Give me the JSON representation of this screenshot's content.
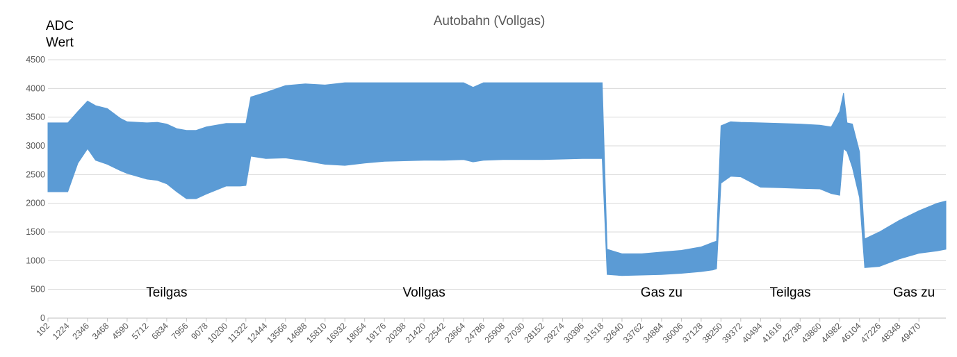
{
  "chart_data": {
    "type": "area",
    "title": "Autobahn (Vollgas)",
    "ylabel_lines": [
      "ADC",
      "Wert"
    ],
    "xlabel": "",
    "ylim": [
      0,
      4500
    ],
    "yticks": [
      "0",
      "500",
      "1000",
      "1500",
      "2000",
      "2500",
      "3000",
      "3500",
      "4000",
      "4500"
    ],
    "grid": true,
    "legend": "none",
    "xlim": [
      102,
      51000
    ],
    "xticks": [
      "102",
      "1224",
      "2346",
      "3468",
      "4590",
      "5712",
      "6834",
      "7956",
      "9078",
      "10200",
      "11322",
      "12444",
      "13566",
      "14688",
      "15810",
      "16932",
      "18054",
      "19176",
      "20298",
      "21420",
      "22542",
      "23664",
      "24786",
      "25908",
      "27030",
      "28152",
      "29274",
      "30396",
      "31518",
      "32640",
      "33762",
      "34884",
      "36006",
      "37128",
      "38250",
      "39372",
      "40494",
      "41616",
      "42738",
      "43860",
      "44982",
      "46104",
      "47226",
      "48348",
      "49470"
    ],
    "series_color": "#5b9bd5",
    "series": [
      {
        "x": [
          102,
          700,
          1224,
          1800,
          2346,
          2800,
          3468,
          4200,
          4590,
          5712,
          6300,
          6834,
          7400,
          7956,
          8500,
          9078,
          10200,
          11000,
          11322,
          11600,
          12444,
          13566,
          14688,
          15810,
          16932,
          18054,
          19176,
          20298,
          21420,
          22542,
          23664,
          24200,
          24786,
          25908,
          27030,
          28152,
          29274,
          30396,
          31000,
          31300,
          31518,
          31800,
          32640,
          33762,
          34884,
          36006,
          37128,
          37800,
          38000,
          38250,
          38800,
          39372,
          40494,
          41616,
          42738,
          43860,
          44500,
          44982,
          45200,
          45400,
          45700,
          46104,
          46400,
          47226,
          48348,
          49470,
          50500,
          51000
        ],
        "upper": [
          3400,
          3400,
          3400,
          3600,
          3780,
          3700,
          3650,
          3480,
          3420,
          3400,
          3410,
          3380,
          3300,
          3270,
          3270,
          3330,
          3390,
          3390,
          3390,
          3850,
          3930,
          4050,
          4080,
          4060,
          4100,
          4100,
          4100,
          4100,
          4100,
          4100,
          4100,
          4020,
          4100,
          4100,
          4100,
          4100,
          4100,
          4100,
          4100,
          4100,
          4100,
          1200,
          1120,
          1120,
          1150,
          1180,
          1240,
          1320,
          1340,
          3350,
          3420,
          3410,
          3400,
          3390,
          3380,
          3360,
          3330,
          3600,
          3920,
          3400,
          3380,
          2900,
          1380,
          1500,
          1700,
          1870,
          2000,
          2040
        ],
        "lower": [
          2200,
          2200,
          2200,
          2700,
          2950,
          2750,
          2680,
          2570,
          2520,
          2420,
          2400,
          2340,
          2200,
          2080,
          2080,
          2160,
          2300,
          2300,
          2310,
          2820,
          2780,
          2790,
          2740,
          2680,
          2660,
          2700,
          2730,
          2740,
          2750,
          2750,
          2760,
          2720,
          2750,
          2760,
          2760,
          2760,
          2770,
          2780,
          2780,
          2780,
          2780,
          760,
          740,
          750,
          760,
          780,
          810,
          840,
          860,
          2350,
          2470,
          2460,
          2280,
          2270,
          2260,
          2250,
          2170,
          2140,
          2950,
          2900,
          2620,
          2100,
          880,
          900,
          1030,
          1130,
          1170,
          1200
        ]
      }
    ],
    "annotations": [
      {
        "text": "Teilgas",
        "x": 6834,
        "y": 460
      },
      {
        "text": "Vollgas",
        "x": 21420,
        "y": 460
      },
      {
        "text": "Gas zu",
        "x": 34884,
        "y": 460
      },
      {
        "text": "Teilgas",
        "x": 42180,
        "y": 460
      },
      {
        "text": "Gas zu",
        "x": 49190,
        "y": 460
      }
    ]
  }
}
